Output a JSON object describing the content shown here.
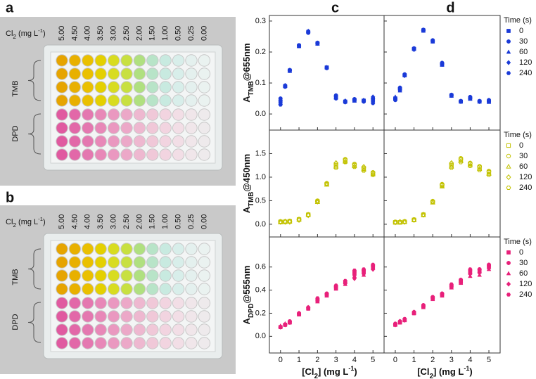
{
  "photos": [
    {
      "label": "a",
      "axis_label": [
        "Cl",
        "2",
        " (mg L",
        "-1",
        ")"
      ],
      "columns": [
        "5.00",
        "4.50",
        "4.00",
        "3.50",
        "3.00",
        "2.50",
        "2.00",
        "1.50",
        "1.00",
        "0.50",
        "0.25",
        "0.00"
      ],
      "groups": [
        "TMB",
        "DPD"
      ]
    },
    {
      "label": "b",
      "axis_label": [
        "Cl",
        "2",
        " (mg L",
        "-1",
        ")"
      ],
      "columns": [
        "5.00",
        "4.50",
        "4.00",
        "3.50",
        "3.00",
        "2.50",
        "2.00",
        "1.50",
        "1.00",
        "0.50",
        "0.25",
        "0.00"
      ],
      "groups": [
        "TMB",
        "DPD"
      ]
    }
  ],
  "chart_data": [
    {
      "type": "scatter",
      "panel_label": "c",
      "ylabel": [
        "A",
        "TMB",
        "@655nm"
      ],
      "xlim": [
        -0.6,
        5.6
      ],
      "ylim": [
        -0.052,
        0.318
      ],
      "xticks": [
        0,
        1,
        2,
        3,
        4,
        5
      ],
      "yticks": [
        {
          "value": 0,
          "label": "0.0"
        },
        {
          "value": 0.1,
          "label": "0.1"
        },
        {
          "value": 0.2,
          "label": "0.2"
        },
        {
          "value": 0.3,
          "label": "0.3"
        }
      ],
      "x": [
        0,
        0.25,
        0.5,
        1,
        1.5,
        2,
        2.5,
        3,
        3.5,
        4,
        4.5,
        5
      ],
      "series": [
        {
          "marker": "square",
          "filled": true,
          "color": "#1a3ad8",
          "values": [
            0.04,
            0.09,
            0.14,
            0.22,
            0.265,
            0.228,
            0.15,
            0.055,
            0.04,
            0.045,
            0.043,
            0.045
          ]
        },
        {
          "marker": "circle",
          "filled": true,
          "color": "#1a3ad8",
          "values": [
            0.05,
            0.088,
            0.142,
            0.222,
            0.262,
            0.23,
            0.148,
            0.06,
            0.038,
            0.048,
            0.04,
            0.05
          ]
        },
        {
          "marker": "triangle",
          "filled": true,
          "color": "#1a3ad8",
          "values": [
            0.035,
            0.09,
            0.138,
            0.218,
            0.268,
            0.226,
            0.15,
            0.052,
            0.04,
            0.042,
            0.045,
            0.04
          ]
        },
        {
          "marker": "diamond",
          "filled": true,
          "color": "#1a3ad8",
          "values": [
            0.045,
            0.092,
            0.14,
            0.22,
            0.264,
            0.228,
            0.15,
            0.056,
            0.042,
            0.046,
            0.044,
            0.055
          ]
        },
        {
          "marker": "hexagon",
          "filled": true,
          "color": "#1a3ad8",
          "values": [
            0.03,
            0.088,
            0.14,
            0.22,
            0.266,
            0.229,
            0.149,
            0.05,
            0.04,
            0.044,
            0.042,
            0.035
          ]
        }
      ]
    },
    {
      "type": "scatter",
      "panel_label": "d",
      "legend_title": "Time (s)",
      "xlim": [
        -0.6,
        5.6
      ],
      "ylim": [
        -0.052,
        0.318
      ],
      "xticks": [
        0,
        1,
        2,
        3,
        4,
        5
      ],
      "yticks": [
        0,
        0.1,
        0.2,
        0.3
      ],
      "x": [
        0,
        0.25,
        0.5,
        1,
        1.5,
        2,
        2.5,
        3,
        3.5,
        4,
        4.5,
        5
      ],
      "series": [
        {
          "name": "0",
          "marker": "square",
          "filled": true,
          "color": "#1a3ad8",
          "values": [
            0.05,
            0.08,
            0.125,
            0.21,
            0.27,
            0.235,
            0.16,
            0.06,
            0.04,
            0.05,
            0.04,
            0.04
          ]
        },
        {
          "name": "30",
          "marker": "circle",
          "filled": true,
          "color": "#1a3ad8",
          "values": [
            0.045,
            0.085,
            0.128,
            0.212,
            0.272,
            0.238,
            0.165,
            0.062,
            0.042,
            0.055,
            0.042,
            0.045
          ]
        },
        {
          "name": "60",
          "marker": "triangle",
          "filled": true,
          "color": "#1a3ad8",
          "values": [
            0.055,
            0.075,
            0.126,
            0.21,
            0.268,
            0.233,
            0.158,
            0.058,
            0.04,
            0.048,
            0.04,
            0.038
          ]
        },
        {
          "name": "120",
          "marker": "diamond",
          "filled": true,
          "color": "#1a3ad8",
          "values": [
            0.05,
            0.078,
            0.124,
            0.208,
            0.27,
            0.236,
            0.16,
            0.06,
            0.04,
            0.052,
            0.04,
            0.042
          ]
        },
        {
          "name": "240",
          "marker": "hexagon",
          "filled": true,
          "color": "#1a3ad8",
          "values": [
            0.048,
            0.082,
            0.127,
            0.211,
            0.269,
            0.234,
            0.162,
            0.059,
            0.041,
            0.05,
            0.041,
            0.04
          ]
        }
      ]
    },
    {
      "type": "scatter",
      "ylabel": [
        "A",
        "TMB",
        "@450nm"
      ],
      "xlim": [
        -0.6,
        5.6
      ],
      "ylim": [
        -0.27,
        2.0
      ],
      "xticks": [
        0,
        1,
        2,
        3,
        4,
        5
      ],
      "yticks": [
        {
          "value": 0,
          "label": "0.0"
        },
        {
          "value": 0.5,
          "label": "0.5"
        },
        {
          "value": 1,
          "label": "1.0"
        },
        {
          "value": 1.5,
          "label": "1.5"
        }
      ],
      "x": [
        0,
        0.25,
        0.5,
        1,
        1.5,
        2,
        2.5,
        3,
        3.5,
        4,
        4.5,
        5
      ],
      "series": [
        {
          "marker": "square",
          "filled": false,
          "color": "#c2c200",
          "values": [
            0.05,
            0.05,
            0.06,
            0.1,
            0.2,
            0.48,
            0.85,
            1.25,
            1.35,
            1.25,
            1.18,
            1.08
          ]
        },
        {
          "marker": "circle",
          "filled": false,
          "color": "#c2c200",
          "values": [
            0.06,
            0.05,
            0.07,
            0.11,
            0.21,
            0.5,
            0.87,
            1.28,
            1.38,
            1.28,
            1.2,
            1.1
          ]
        },
        {
          "marker": "triangle",
          "filled": false,
          "color": "#c2c200",
          "values": [
            0.04,
            0.06,
            0.06,
            0.1,
            0.2,
            0.47,
            0.84,
            1.22,
            1.33,
            1.23,
            1.16,
            1.06
          ]
        },
        {
          "marker": "diamond",
          "filled": false,
          "color": "#c2c200",
          "values": [
            0.05,
            0.05,
            0.05,
            0.09,
            0.19,
            0.48,
            0.86,
            1.3,
            1.37,
            1.27,
            1.22,
            1.09
          ]
        },
        {
          "marker": "hexagon",
          "filled": false,
          "color": "#c2c200",
          "values": [
            0.05,
            0.06,
            0.06,
            0.1,
            0.2,
            0.49,
            0.85,
            1.2,
            1.32,
            1.22,
            1.14,
            1.05
          ]
        }
      ]
    },
    {
      "type": "scatter",
      "legend_title": "Time (s)",
      "xlim": [
        -0.6,
        5.6
      ],
      "ylim": [
        -0.27,
        2.0
      ],
      "xticks": [
        0,
        1,
        2,
        3,
        4,
        5
      ],
      "yticks": [
        0,
        0.5,
        1,
        1.5
      ],
      "x": [
        0,
        0.25,
        0.5,
        1,
        1.5,
        2,
        2.5,
        3,
        3.5,
        4,
        4.5,
        5
      ],
      "series": [
        {
          "name": "0",
          "marker": "square",
          "filled": false,
          "color": "#c2c200",
          "values": [
            0.04,
            0.04,
            0.05,
            0.09,
            0.2,
            0.47,
            0.82,
            1.25,
            1.37,
            1.28,
            1.2,
            1.1
          ]
        },
        {
          "name": "30",
          "marker": "circle",
          "filled": false,
          "color": "#c2c200",
          "values": [
            0.05,
            0.05,
            0.06,
            0.1,
            0.21,
            0.49,
            0.85,
            1.28,
            1.4,
            1.3,
            1.23,
            1.13
          ]
        },
        {
          "name": "60",
          "marker": "triangle",
          "filled": false,
          "color": "#c2c200",
          "values": [
            0.04,
            0.04,
            0.05,
            0.09,
            0.19,
            0.46,
            0.8,
            1.22,
            1.34,
            1.25,
            1.17,
            1.07
          ]
        },
        {
          "name": "120",
          "marker": "diamond",
          "filled": false,
          "color": "#c2c200",
          "values": [
            0.04,
            0.05,
            0.05,
            0.09,
            0.2,
            0.48,
            0.84,
            1.3,
            1.38,
            1.29,
            1.22,
            1.12
          ]
        },
        {
          "name": "240",
          "marker": "hexagon",
          "filled": false,
          "color": "#c2c200",
          "values": [
            0.05,
            0.04,
            0.06,
            0.1,
            0.2,
            0.47,
            0.83,
            1.2,
            1.32,
            1.24,
            1.15,
            1.05
          ]
        }
      ]
    },
    {
      "type": "scatter",
      "ylabel": [
        "A",
        "DPD",
        "@555nm"
      ],
      "xlabel": [
        "[Cl",
        "2",
        "] (mg L",
        "-1",
        ")"
      ],
      "xlim": [
        -0.6,
        5.6
      ],
      "ylim": [
        -0.144,
        0.86
      ],
      "xticks": [
        0,
        1,
        2,
        3,
        4,
        5
      ],
      "yticks": [
        {
          "value": 0,
          "label": "0.0"
        },
        {
          "value": 0.2,
          "label": "0.2"
        },
        {
          "value": 0.4,
          "label": "0.4"
        },
        {
          "value": 0.6,
          "label": "0.6"
        }
      ],
      "x": [
        0,
        0.25,
        0.5,
        1,
        1.5,
        2,
        2.5,
        3,
        3.5,
        4,
        4.5,
        5
      ],
      "series": [
        {
          "marker": "square",
          "filled": true,
          "color": "#e8207a",
          "values": [
            0.08,
            0.1,
            0.12,
            0.19,
            0.24,
            0.31,
            0.36,
            0.42,
            0.47,
            0.54,
            0.56,
            0.6
          ]
        },
        {
          "marker": "circle",
          "filled": true,
          "color": "#e8207a",
          "values": [
            0.08,
            0.1,
            0.13,
            0.2,
            0.25,
            0.32,
            0.37,
            0.43,
            0.46,
            0.56,
            0.57,
            0.61
          ]
        },
        {
          "marker": "triangle",
          "filled": true,
          "color": "#e8207a",
          "values": [
            0.09,
            0.11,
            0.12,
            0.19,
            0.24,
            0.3,
            0.35,
            0.41,
            0.45,
            0.52,
            0.53,
            0.59
          ]
        },
        {
          "marker": "diamond",
          "filled": true,
          "color": "#e8207a",
          "values": [
            0.08,
            0.1,
            0.12,
            0.2,
            0.25,
            0.31,
            0.36,
            0.42,
            0.46,
            0.5,
            0.54,
            0.58
          ]
        },
        {
          "marker": "hexagon",
          "filled": true,
          "color": "#e8207a",
          "values": [
            0.08,
            0.1,
            0.13,
            0.19,
            0.24,
            0.33,
            0.37,
            0.44,
            0.48,
            0.57,
            0.58,
            0.62
          ]
        }
      ]
    },
    {
      "type": "scatter",
      "legend_title": "Time (s)",
      "xlabel": [
        "[Cl",
        "2",
        "] (mg L",
        "-1",
        ")"
      ],
      "xlim": [
        -0.6,
        5.6
      ],
      "ylim": [
        -0.144,
        0.86
      ],
      "xticks": [
        0,
        1,
        2,
        3,
        4,
        5
      ],
      "yticks": [
        0,
        0.2,
        0.4,
        0.6
      ],
      "x": [
        0,
        0.25,
        0.5,
        1,
        1.5,
        2,
        2.5,
        3,
        3.5,
        4,
        4.5,
        5
      ],
      "series": [
        {
          "name": "0",
          "marker": "square",
          "filled": true,
          "color": "#e8207a",
          "values": [
            0.1,
            0.12,
            0.14,
            0.2,
            0.26,
            0.33,
            0.36,
            0.43,
            0.47,
            0.55,
            0.56,
            0.6
          ]
        },
        {
          "name": "30",
          "marker": "circle",
          "filled": true,
          "color": "#e8207a",
          "values": [
            0.11,
            0.13,
            0.15,
            0.21,
            0.27,
            0.34,
            0.37,
            0.44,
            0.49,
            0.57,
            0.58,
            0.62
          ]
        },
        {
          "name": "60",
          "marker": "triangle",
          "filled": true,
          "color": "#e8207a",
          "values": [
            0.1,
            0.12,
            0.14,
            0.2,
            0.25,
            0.32,
            0.35,
            0.42,
            0.46,
            0.52,
            0.53,
            0.58
          ]
        },
        {
          "name": "120",
          "marker": "diamond",
          "filled": true,
          "color": "#e8207a",
          "values": [
            0.1,
            0.13,
            0.14,
            0.21,
            0.26,
            0.33,
            0.36,
            0.43,
            0.47,
            0.54,
            0.55,
            0.59
          ]
        },
        {
          "name": "240",
          "marker": "hexagon",
          "filled": true,
          "color": "#e8207a",
          "values": [
            0.1,
            0.12,
            0.15,
            0.2,
            0.26,
            0.34,
            0.37,
            0.45,
            0.48,
            0.58,
            0.58,
            0.61
          ]
        }
      ]
    }
  ]
}
